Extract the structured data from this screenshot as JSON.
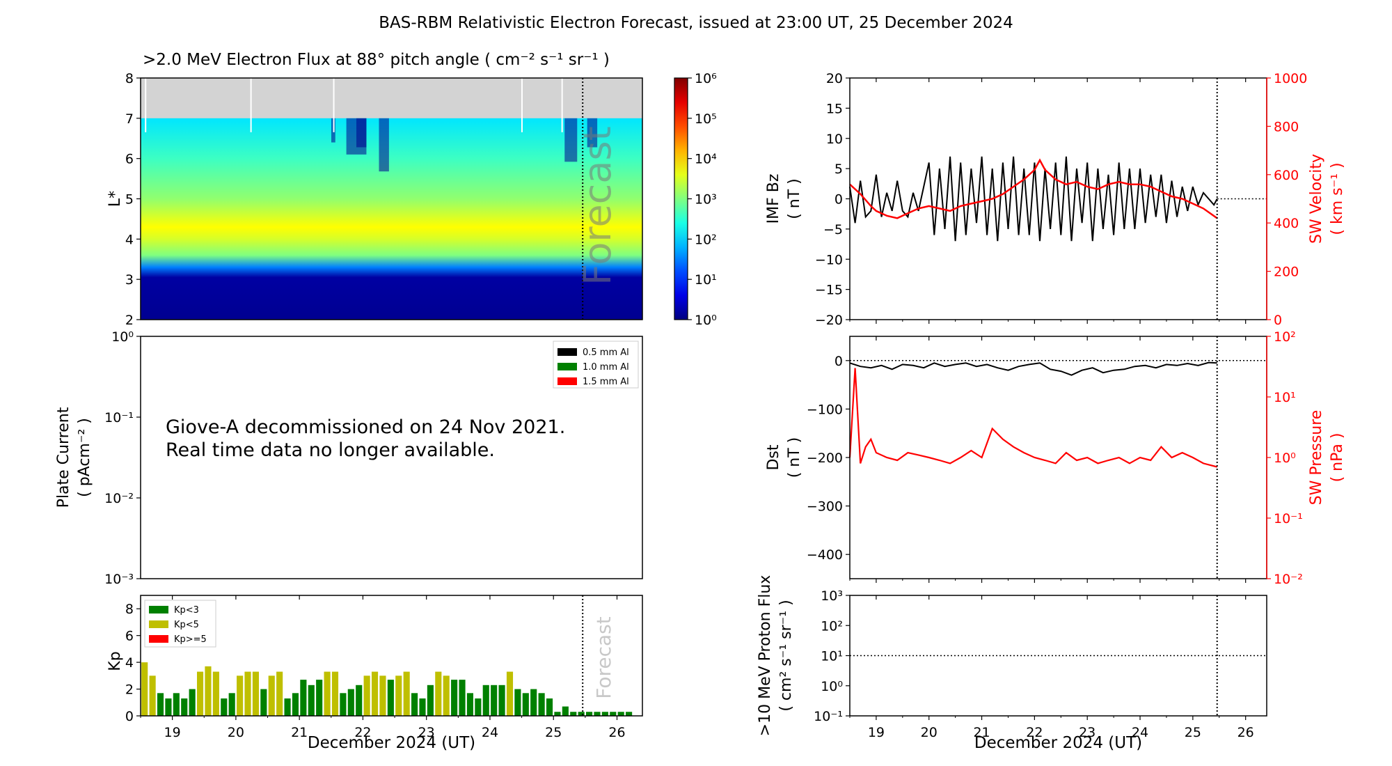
{
  "title": "BAS-RBM Relativistic Electron Forecast, issued at 23:00 UT, 25 December 2024",
  "colors": {
    "black": "#000000",
    "red": "#ff0000",
    "kp_low": "#008000",
    "kp_mid": "#bfbf00",
    "kp_high": "#ff0000",
    "gray_mask": "#d3d3d3",
    "forecast_text": "#c8c8c8"
  },
  "chart_data": [
    {
      "id": "flux",
      "type": "heatmap",
      "title": ">2.0 MeV Electron Flux at 88° pitch angle ( cm⁻² s⁻¹ sr⁻¹ )",
      "ylabel": "L*",
      "ylim": [
        2,
        8
      ],
      "xlim": [
        18.5,
        26.4
      ],
      "yticks": [
        "2",
        "3",
        "4",
        "5",
        "6",
        "7",
        "8"
      ],
      "annotation": "Forecast",
      "forecast_x": 25.46,
      "no_data_above_L": 7,
      "colorbar": {
        "scale": "log",
        "range": [
          1,
          1000000
        ],
        "ticks": [
          "10⁰",
          "10¹",
          "10²",
          "10³",
          "10⁴",
          "10⁵",
          "10⁶"
        ]
      },
      "profile_log10_flux": [
        {
          "L": 2.0,
          "v": 0.1
        },
        {
          "L": 3.05,
          "v": 0.2
        },
        {
          "L": 3.3,
          "v": 1.5
        },
        {
          "L": 3.6,
          "v": 3.0
        },
        {
          "L": 4.0,
          "v": 3.5
        },
        {
          "L": 4.3,
          "v": 3.75
        },
        {
          "L": 5.0,
          "v": 3.1
        },
        {
          "L": 6.0,
          "v": 2.6
        },
        {
          "L": 7.0,
          "v": 2.1
        }
      ]
    },
    {
      "id": "plate",
      "type": "line",
      "ylabel": "Plate Current ( pAcm⁻² )",
      "yscale": "log",
      "ylim": [
        0.001,
        1
      ],
      "yticks": [
        "10⁻³",
        "10⁻²",
        "10⁻¹",
        "10⁰"
      ],
      "legend_position": "top-right",
      "series": [
        {
          "name": "0.5 mm Al",
          "color": "#000000",
          "values": []
        },
        {
          "name": "1.0 mm Al",
          "color": "#008000",
          "values": []
        },
        {
          "name": "1.5 mm Al",
          "color": "#ff0000",
          "values": []
        }
      ],
      "message": [
        "Giove-A decommissioned on 24 Nov 2021.",
        "Real time data no longer available."
      ]
    },
    {
      "id": "kp",
      "type": "bar",
      "ylabel": "Kp",
      "ylim": [
        0,
        9
      ],
      "yticks": [
        "0",
        "2",
        "4",
        "6",
        "8"
      ],
      "xlabel": "December 2024 (UT)",
      "xlim": [
        18.5,
        26.4
      ],
      "xticks": [
        "19",
        "20",
        "21",
        "22",
        "23",
        "24",
        "25",
        "26"
      ],
      "annotation": "Forecast",
      "forecast_x": 25.46,
      "legend_position": "top-left",
      "legend": [
        {
          "name": "Kp<3",
          "color": "#008000"
        },
        {
          "name": "Kp<5",
          "color": "#bfbf00"
        },
        {
          "name": "Kp>=5",
          "color": "#ff0000"
        }
      ],
      "bar_width_days": 0.1,
      "start_day": 18.5,
      "step_days": 0.125,
      "values": [
        4.0,
        3.0,
        1.7,
        1.3,
        1.7,
        1.3,
        2.0,
        3.3,
        3.7,
        3.3,
        1.3,
        1.7,
        3.0,
        3.3,
        3.3,
        2.0,
        3.0,
        3.3,
        1.3,
        1.7,
        2.7,
        2.3,
        2.7,
        3.3,
        3.3,
        1.7,
        2.0,
        2.3,
        3.0,
        3.3,
        3.0,
        2.7,
        3.0,
        3.3,
        1.7,
        1.3,
        2.3,
        3.3,
        3.0,
        2.7,
        2.7,
        1.7,
        1.3,
        2.3,
        2.3,
        2.3,
        3.3,
        2.0,
        1.7,
        2.0,
        1.7,
        1.3,
        0.3,
        0.7,
        0.3,
        0.3,
        0.3,
        0.3,
        0.3,
        0.3,
        0.3,
        0.3
      ]
    },
    {
      "id": "imf",
      "type": "line",
      "ylabel": "IMF Bz ( nT )",
      "ylim": [
        -20,
        20
      ],
      "yticks": [
        "−20",
        "−15",
        "−10",
        "−5",
        "0",
        "5",
        "10",
        "15",
        "20"
      ],
      "y2label": "SW Velocity ( km s⁻¹ )",
      "y2lim": [
        0,
        1000
      ],
      "y2ticks": [
        "0",
        "200",
        "400",
        "600",
        "800",
        "1000"
      ],
      "xlim": [
        18.5,
        26.4
      ],
      "forecast_x": 25.46,
      "series": [
        {
          "name": "IMF Bz",
          "color": "#000000",
          "x": [
            18.5,
            18.6,
            18.7,
            18.8,
            18.9,
            19.0,
            19.1,
            19.2,
            19.3,
            19.4,
            19.5,
            19.6,
            19.7,
            19.8,
            19.9,
            20.0,
            20.1,
            20.2,
            20.3,
            20.4,
            20.5,
            20.6,
            20.7,
            20.8,
            20.9,
            21.0,
            21.1,
            21.2,
            21.3,
            21.4,
            21.5,
            21.6,
            21.7,
            21.8,
            21.9,
            22.0,
            22.1,
            22.2,
            22.3,
            22.4,
            22.5,
            22.6,
            22.7,
            22.8,
            22.9,
            23.0,
            23.1,
            23.2,
            23.3,
            23.4,
            23.5,
            23.6,
            23.7,
            23.8,
            23.9,
            24.0,
            24.1,
            24.2,
            24.3,
            24.4,
            24.5,
            24.6,
            24.7,
            24.8,
            24.9,
            25.0,
            25.1,
            25.2,
            25.3,
            25.4,
            25.46
          ],
          "values": [
            2,
            -4,
            3,
            -3,
            -2,
            4,
            -3,
            1,
            -2,
            3,
            -2,
            -3,
            1,
            -2,
            2,
            6,
            -6,
            5,
            -5,
            7,
            -7,
            6,
            -6,
            5,
            -4,
            7,
            -6,
            5,
            -7,
            6,
            -5,
            7,
            -6,
            5,
            -6,
            6,
            -7,
            5,
            -5,
            6,
            -6,
            7,
            -7,
            5,
            -4,
            6,
            -7,
            5,
            -5,
            4,
            -6,
            6,
            -5,
            5,
            -5,
            5,
            -4,
            4,
            -3,
            4,
            -4,
            3,
            -3,
            2,
            -2,
            2,
            -1,
            1,
            0,
            -1,
            0
          ]
        },
        {
          "name": "SW Velocity",
          "color": "#ff0000",
          "axis": "right",
          "x": [
            18.5,
            18.7,
            18.9,
            19.0,
            19.2,
            19.4,
            19.6,
            19.8,
            20.0,
            20.2,
            20.4,
            20.6,
            20.8,
            21.0,
            21.2,
            21.4,
            21.6,
            21.8,
            22.0,
            22.1,
            22.2,
            22.4,
            22.6,
            22.8,
            23.0,
            23.2,
            23.4,
            23.6,
            23.8,
            24.0,
            24.2,
            24.4,
            24.6,
            24.8,
            25.0,
            25.2,
            25.46
          ],
          "values": [
            560,
            520,
            470,
            450,
            430,
            420,
            440,
            460,
            470,
            460,
            450,
            470,
            480,
            490,
            500,
            520,
            550,
            580,
            620,
            660,
            620,
            580,
            560,
            570,
            550,
            540,
            560,
            570,
            560,
            560,
            550,
            530,
            510,
            500,
            480,
            460,
            420
          ]
        }
      ]
    },
    {
      "id": "dst",
      "type": "line",
      "ylabel": "Dst ( nT )",
      "ylim": [
        -450,
        50
      ],
      "yticks": [
        "−400",
        "−300",
        "−200",
        "−100",
        "0"
      ],
      "y2label": "SW Pressure ( nPa )",
      "y2scale": "log",
      "y2lim": [
        0.01,
        100
      ],
      "y2ticks": [
        "10⁻²",
        "10⁻¹",
        "10⁰",
        "10¹",
        "10²"
      ],
      "xlim": [
        18.5,
        26.4
      ],
      "forecast_x": 25.46,
      "series": [
        {
          "name": "Dst",
          "color": "#000000",
          "x": [
            18.5,
            18.7,
            18.9,
            19.1,
            19.3,
            19.5,
            19.7,
            19.9,
            20.1,
            20.3,
            20.5,
            20.7,
            20.9,
            21.1,
            21.3,
            21.5,
            21.7,
            21.9,
            22.1,
            22.3,
            22.5,
            22.7,
            22.9,
            23.1,
            23.3,
            23.5,
            23.7,
            23.9,
            24.1,
            24.3,
            24.5,
            24.7,
            24.9,
            25.1,
            25.3,
            25.46
          ],
          "values": [
            -5,
            -12,
            -15,
            -10,
            -18,
            -8,
            -10,
            -15,
            -5,
            -12,
            -8,
            -5,
            -12,
            -8,
            -15,
            -20,
            -12,
            -8,
            -5,
            -18,
            -22,
            -30,
            -20,
            -15,
            -25,
            -20,
            -18,
            -12,
            -10,
            -15,
            -8,
            -10,
            -6,
            -10,
            -4,
            -5
          ]
        },
        {
          "name": "SW Pressure",
          "color": "#ff0000",
          "axis": "right",
          "x": [
            18.5,
            18.6,
            18.7,
            18.8,
            18.9,
            19.0,
            19.2,
            19.4,
            19.6,
            19.8,
            20.0,
            20.2,
            20.4,
            20.6,
            20.8,
            21.0,
            21.2,
            21.4,
            21.6,
            21.8,
            22.0,
            22.2,
            22.4,
            22.6,
            22.8,
            23.0,
            23.2,
            23.4,
            23.6,
            23.8,
            24.0,
            24.2,
            24.4,
            24.6,
            24.8,
            25.0,
            25.2,
            25.46
          ],
          "values": [
            1.0,
            30,
            0.8,
            1.5,
            2.0,
            1.2,
            1.0,
            0.9,
            1.2,
            1.1,
            1.0,
            0.9,
            0.8,
            1.0,
            1.3,
            1.0,
            3.0,
            2.0,
            1.5,
            1.2,
            1.0,
            0.9,
            0.8,
            1.2,
            0.9,
            1.0,
            0.8,
            0.9,
            1.0,
            0.8,
            1.0,
            0.9,
            1.5,
            1.0,
            1.2,
            1.0,
            0.8,
            0.7
          ]
        }
      ]
    },
    {
      "id": "proton",
      "type": "line",
      "ylabel": ">10 MeV Proton Flux ( cm² s⁻¹ sr⁻¹ )",
      "yscale": "log",
      "ylim": [
        0.1,
        1000
      ],
      "yticks": [
        "10⁻¹",
        "10⁰",
        "10¹",
        "10²",
        "10³"
      ],
      "threshold": 10,
      "xlabel": "December 2024 (UT)",
      "xlim": [
        18.5,
        26.4
      ],
      "xticks": [
        "19",
        "20",
        "21",
        "22",
        "23",
        "24",
        "25",
        "26"
      ],
      "forecast_x": 25.46,
      "series": []
    }
  ]
}
